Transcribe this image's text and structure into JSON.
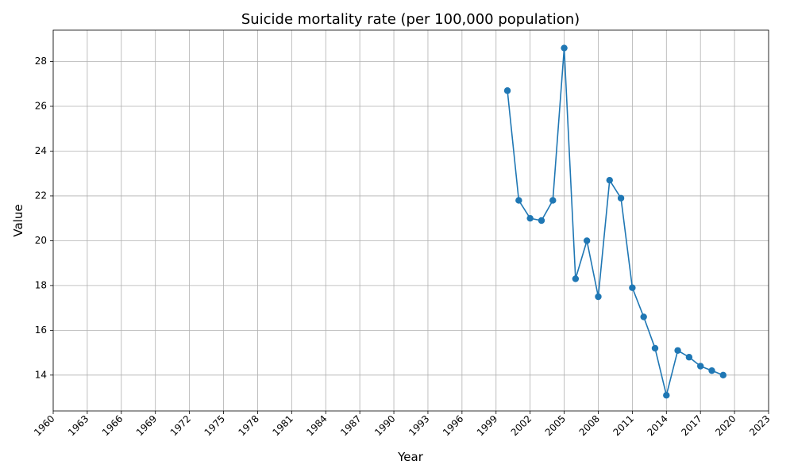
{
  "chart_data": {
    "type": "line",
    "title": "Suicide mortality rate (per 100,000 population)",
    "xlabel": "Year",
    "ylabel": "Value",
    "xlim": [
      1960,
      2023
    ],
    "ylim": [
      12.4,
      29.4
    ],
    "x_ticks": [
      1960,
      1963,
      1966,
      1969,
      1972,
      1975,
      1978,
      1981,
      1984,
      1987,
      1990,
      1993,
      1996,
      1999,
      2002,
      2005,
      2008,
      2011,
      2014,
      2017,
      2020,
      2023
    ],
    "y_ticks": [
      14,
      16,
      18,
      20,
      22,
      24,
      26,
      28
    ],
    "grid": true,
    "series": [
      {
        "color": "#1f77b4",
        "marker": "circle",
        "x": [
          2000,
          2001,
          2002,
          2003,
          2004,
          2005,
          2006,
          2007,
          2008,
          2009,
          2010,
          2011,
          2012,
          2013,
          2014,
          2015,
          2016,
          2017,
          2018,
          2019
        ],
        "y": [
          26.7,
          21.8,
          21.0,
          20.9,
          21.8,
          28.6,
          18.3,
          20.0,
          17.5,
          22.7,
          21.9,
          17.9,
          16.6,
          15.2,
          13.1,
          15.1,
          14.8,
          14.4,
          14.2,
          14.0
        ]
      }
    ]
  }
}
